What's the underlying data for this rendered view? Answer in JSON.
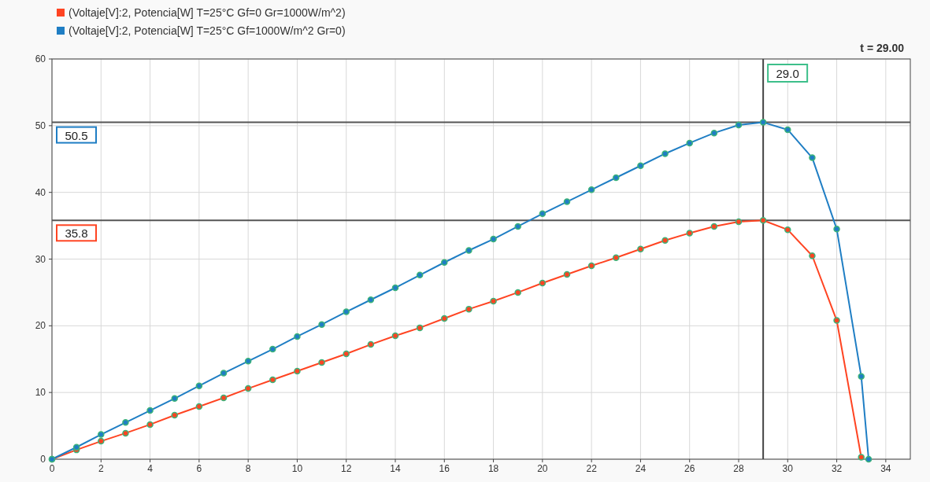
{
  "chart_data": {
    "type": "line",
    "xlim": [
      0,
      35
    ],
    "xticks": [
      0,
      2,
      4,
      6,
      8,
      10,
      12,
      14,
      16,
      18,
      20,
      22,
      24,
      26,
      28,
      30,
      32,
      34
    ],
    "ylim": [
      0,
      60
    ],
    "yticks": [
      0,
      10,
      20,
      30,
      40,
      50,
      60
    ],
    "grid": true,
    "legend": "top left",
    "marker": "circle",
    "line_style": "solid",
    "series": [
      {
        "name": "(Voltaje[V]:2, Potencia[W] T=25°C Gf=0 Gr=1000W/m^2)",
        "color": "#ff4422",
        "x": [
          0,
          1,
          2,
          3,
          4,
          5,
          6,
          7,
          8,
          9,
          10,
          11,
          12,
          13,
          14,
          15,
          16,
          17,
          18,
          19,
          20,
          21,
          22,
          23,
          24,
          25,
          26,
          27,
          28,
          29,
          30,
          31,
          32,
          33
        ],
        "values": [
          0,
          1.4,
          2.7,
          3.9,
          5.2,
          6.6,
          7.9,
          9.2,
          10.6,
          11.9,
          13.2,
          14.5,
          15.8,
          17.2,
          18.5,
          19.7,
          21.1,
          22.5,
          23.7,
          25.0,
          26.4,
          27.7,
          29.0,
          30.2,
          31.5,
          32.8,
          33.9,
          34.9,
          35.6,
          35.8,
          34.4,
          30.5,
          20.8,
          0.3
        ]
      },
      {
        "name": "(Voltaje[V]:2, Potencia[W] T=25°C Gf=1000W/m^2 Gr=0)",
        "color": "#1f7ec4",
        "x": [
          0,
          1,
          2,
          3,
          4,
          5,
          6,
          7,
          8,
          9,
          10,
          11,
          12,
          13,
          14,
          15,
          16,
          17,
          18,
          19,
          20,
          21,
          22,
          23,
          24,
          25,
          26,
          27,
          28,
          29,
          30,
          31,
          32,
          33,
          33.3
        ],
        "values": [
          0,
          1.8,
          3.7,
          5.5,
          7.3,
          9.1,
          11.0,
          12.9,
          14.7,
          16.5,
          18.4,
          20.2,
          22.1,
          23.9,
          25.7,
          27.6,
          29.5,
          31.3,
          33.0,
          34.9,
          36.8,
          38.6,
          40.4,
          42.2,
          44.0,
          45.8,
          47.4,
          48.9,
          50.1,
          50.5,
          49.4,
          45.2,
          34.5,
          12.4,
          0
        ]
      }
    ],
    "ref_lines": [
      {
        "axis": "y",
        "value": 50.5,
        "label": "50.5",
        "color": "#555555"
      },
      {
        "axis": "y",
        "value": 35.8,
        "label": "35.8",
        "color": "#555555"
      },
      {
        "axis": "x",
        "value": 29,
        "label": "29.0",
        "color": "#444444"
      }
    ],
    "annotations": [
      "t = 29.00"
    ]
  }
}
